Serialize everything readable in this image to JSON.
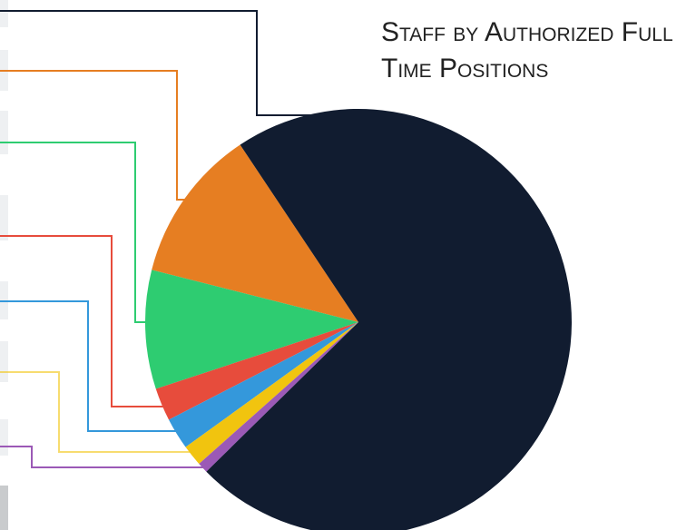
{
  "chart_data": {
    "type": "pie",
    "title": "Staff by Authorized Full Time Positions",
    "values": [
      11.7,
      9,
      2.5,
      2.4,
      1.6,
      0.8,
      72
    ],
    "colors": [
      "#e67e22",
      "#2ecc71",
      "#e74c3c",
      "#3498db",
      "#f1c40f",
      "#9b59b6",
      "#111c30"
    ]
  }
}
